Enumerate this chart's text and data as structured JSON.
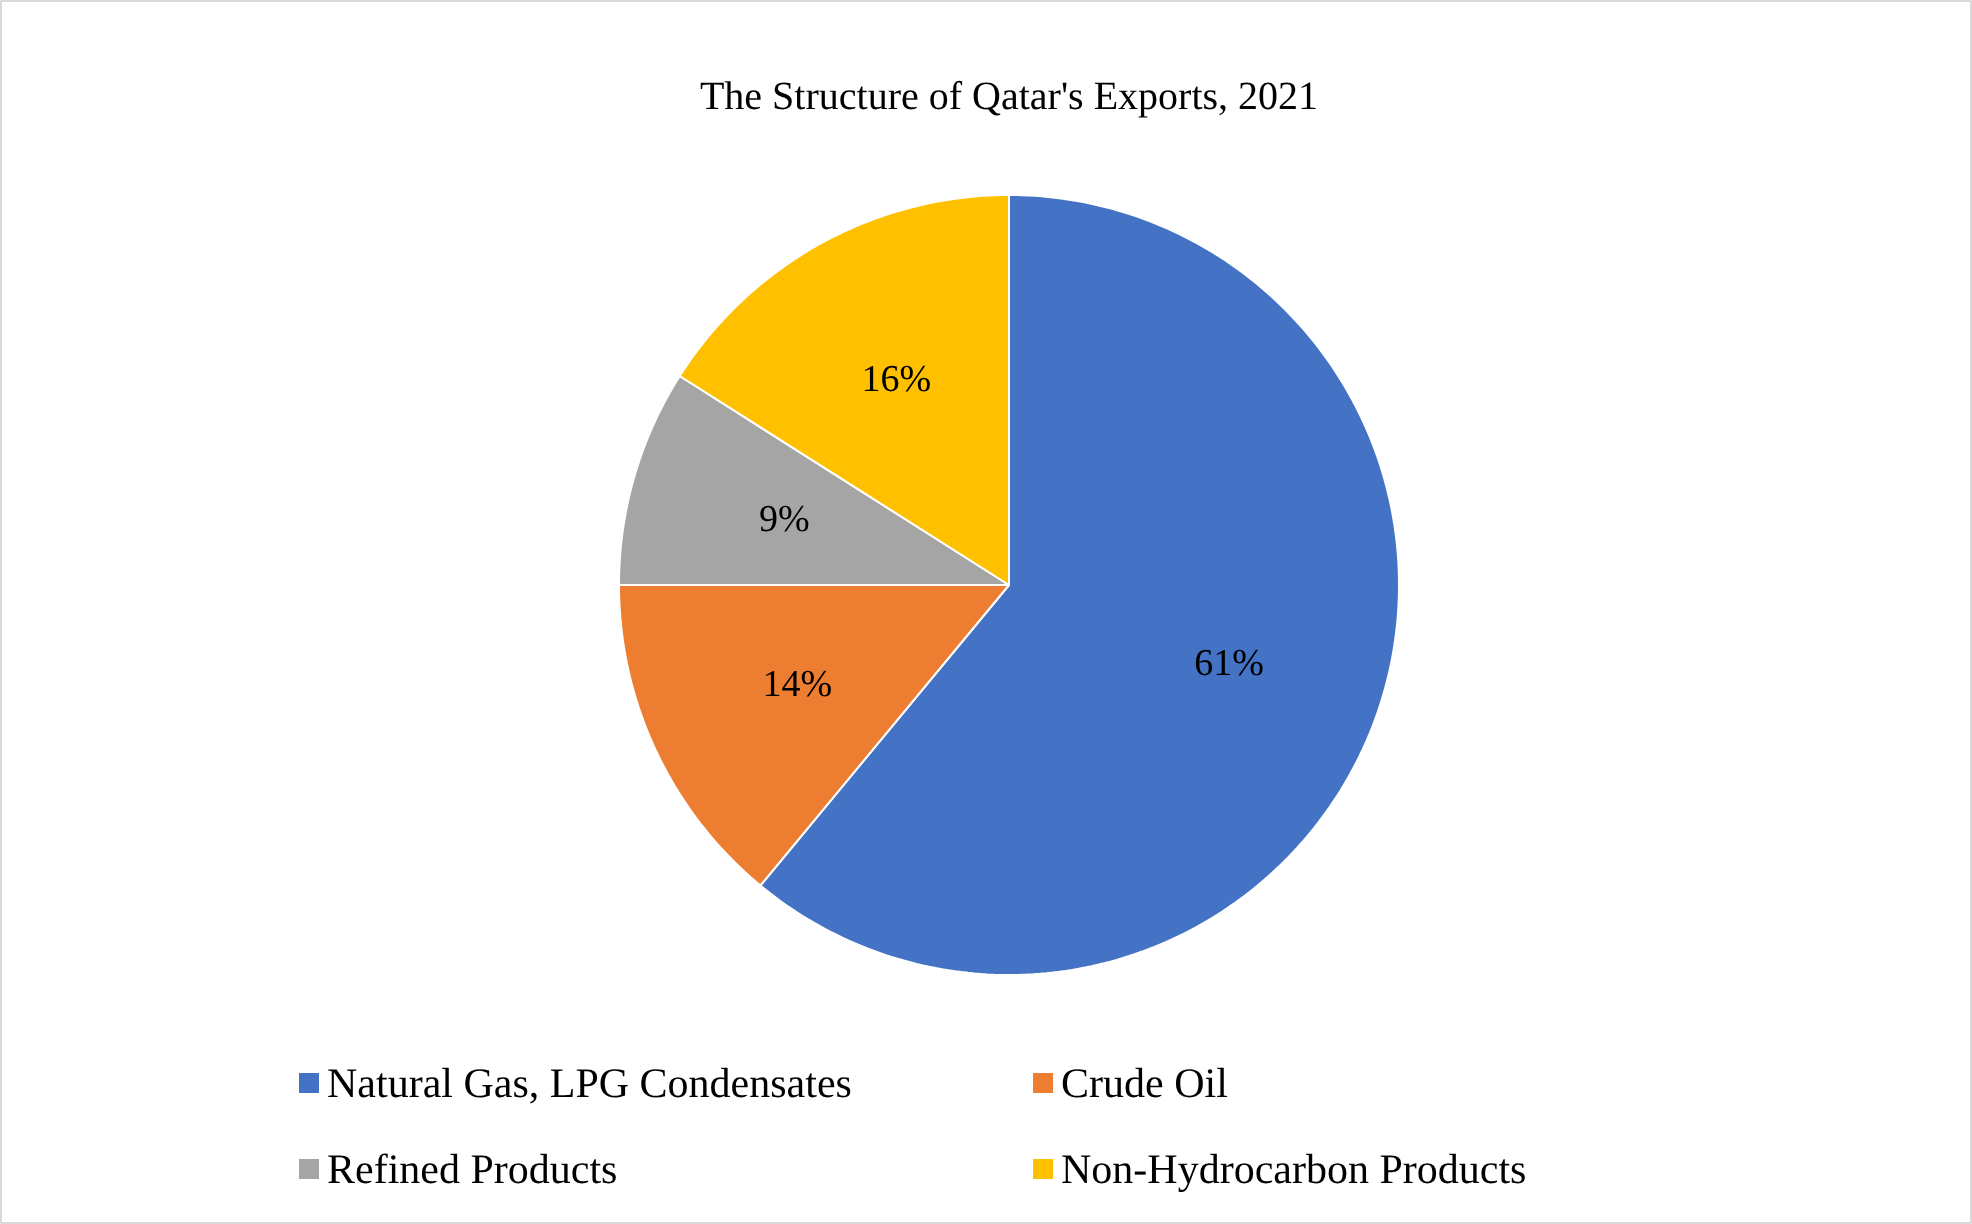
{
  "chart_data": {
    "type": "pie",
    "title": "The Structure of Qatar's Exports, 2021",
    "categories": [
      "Natural Gas, LPG Condensates",
      "Crude Oil",
      "Refined Products",
      "Non-Hydrocarbon Products"
    ],
    "values": [
      61,
      14,
      9,
      16
    ],
    "colors": [
      "#4472c4",
      "#ed7d31",
      "#a5a5a5",
      "#ffc000"
    ],
    "value_labels": [
      "61%",
      "14%",
      "9%",
      "16%"
    ],
    "legend": "bottom"
  }
}
